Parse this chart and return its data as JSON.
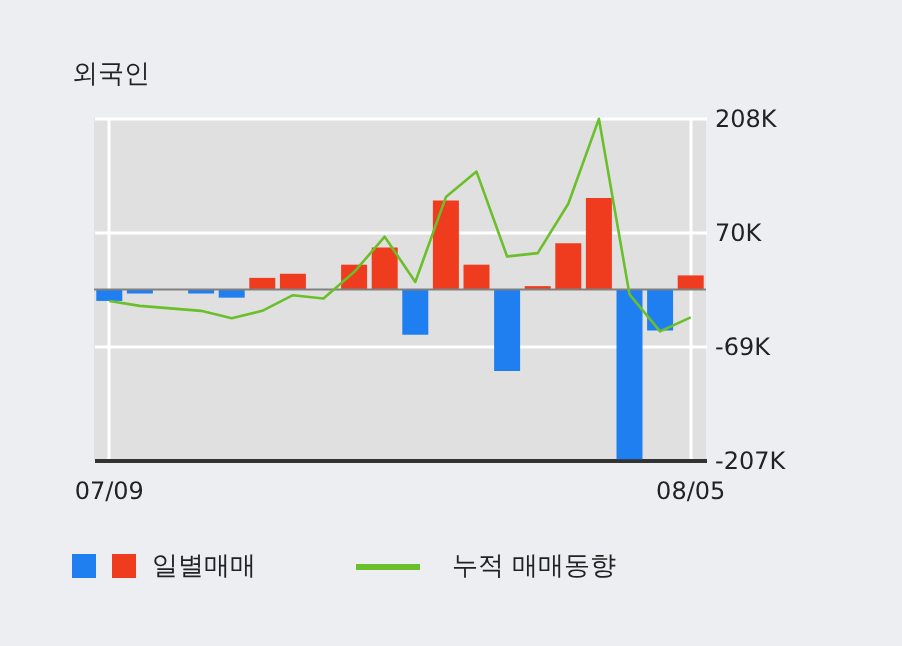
{
  "chart_data": {
    "type": "bar",
    "title": "외국인",
    "categories": [
      "07/09",
      null,
      null,
      null,
      null,
      null,
      null,
      null,
      null,
      null,
      null,
      null,
      null,
      null,
      null,
      null,
      null,
      null,
      null,
      "08/05"
    ],
    "series": [
      {
        "name": "일별매매",
        "colors": [
          "#1f7ff0",
          "#1f7ff0",
          "#1f7ff0",
          "#1f7ff0",
          "#1f7ff0",
          "#f03c1e",
          "#f03c1e",
          "#f03c1e",
          "#f03c1e",
          "#f03c1e",
          "#1f7ff0",
          "#f03c1e",
          "#f03c1e",
          "#1f7ff0",
          "#f03c1e",
          "#f03c1e",
          "#f03c1e",
          "#1f7ff0",
          "#1f7ff0",
          "#f03c1e"
        ],
        "values": [
          -14,
          -5,
          0,
          -5,
          -10,
          14,
          19,
          0,
          30,
          51,
          -55,
          108,
          30,
          -99,
          4,
          56,
          111,
          -206,
          -50,
          17
        ]
      },
      {
        "name": "누적 매매동향",
        "type": "line",
        "color": "#6abf2a",
        "values": [
          -14,
          -20,
          -23,
          -26,
          -35,
          -26,
          -7,
          -11,
          21,
          64,
          9,
          112,
          143,
          40,
          44,
          104,
          207,
          -6,
          -51,
          -34
        ]
      }
    ],
    "ylim": [
      -207,
      208
    ],
    "yticks": [
      {
        "value": -207,
        "label": "-207K"
      },
      {
        "value": -69,
        "label": "-69K"
      },
      {
        "value": 70,
        "label": "70K"
      },
      {
        "value": 208,
        "label": "208K"
      }
    ],
    "ref_lines": [
      {
        "axis": "y",
        "value": 0,
        "color": "#808080"
      }
    ],
    "grid": true,
    "legend": "bottom"
  }
}
